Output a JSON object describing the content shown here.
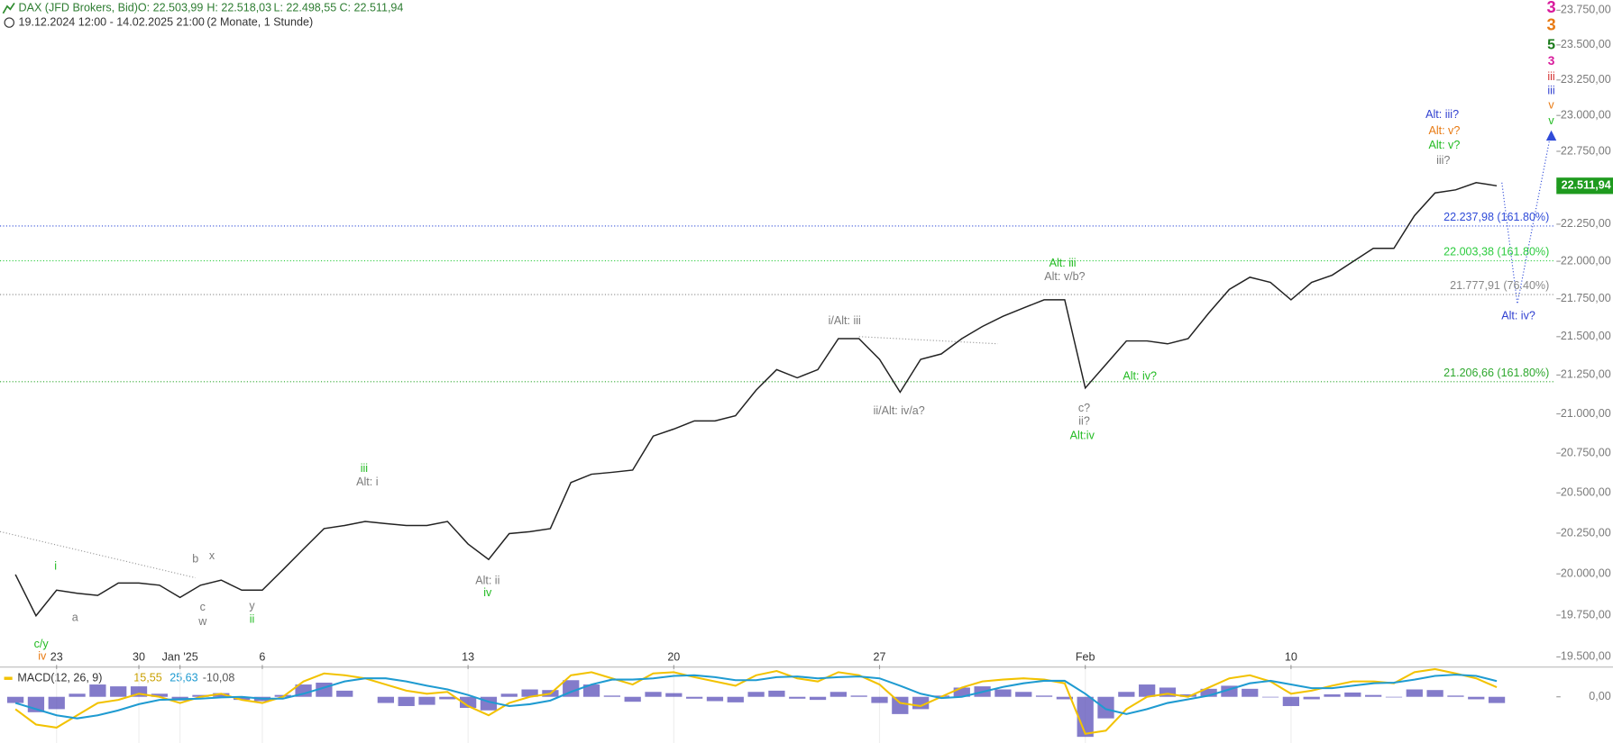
{
  "header": {
    "symbol": "DAX (JFD Brokers, Bid)",
    "open": "O: 22.503,99",
    "high": "H: 22.518,03",
    "low": "L: 22.498,55",
    "close": "C: 22.511,94",
    "range": "19.12.2024 12:00 - 14.02.2025 21:00",
    "period": "(2 Monate, 1 Stunde)"
  },
  "chart_data": [
    {
      "type": "line",
      "log": true,
      "categories": [
        null,
        null,
        "23",
        null,
        null,
        null,
        "30",
        null,
        "Jan '25",
        null,
        null,
        null,
        "6",
        null,
        null,
        null,
        null,
        null,
        null,
        null,
        null,
        null,
        "13",
        null,
        null,
        null,
        null,
        null,
        null,
        null,
        null,
        null,
        "20",
        null,
        null,
        null,
        null,
        null,
        null,
        null,
        null,
        null,
        "27",
        null,
        null,
        null,
        null,
        null,
        null,
        null,
        null,
        null,
        "Feb",
        null,
        null,
        null,
        null,
        null,
        null,
        null,
        null,
        null,
        "10",
        null,
        null,
        null,
        null,
        null,
        null,
        null,
        null,
        null,
        null
      ],
      "series": [
        {
          "color": "#222222",
          "values": [
            19996,
            19746,
            19901,
            19882,
            19869,
            19944,
            19944,
            19931,
            19857,
            19931,
            19962,
            19901,
            19901,
            20025,
            20152,
            20278,
            20297,
            20322,
            20309,
            20297,
            20297,
            20322,
            20183,
            20088,
            20247,
            20259,
            20278,
            20565,
            20617,
            20629,
            20643,
            20858,
            20903,
            20955,
            20955,
            20988,
            21152,
            21285,
            21232,
            21285,
            21487,
            21487,
            21352,
            21139,
            21352,
            21387,
            21487,
            21567,
            21634,
            21689,
            21743,
            21743,
            21166,
            21318,
            21472,
            21472,
            21453,
            21487,
            21655,
            21812,
            21893,
            21859,
            21743,
            21859,
            21907,
            21997,
            22087,
            22087,
            22308,
            22463,
            22484,
            22534,
            22511.94
          ]
        }
      ],
      "ylim": [
        19452,
        23824
      ],
      "yticks": [
        {
          "value": 23750,
          "label": "23.750,00"
        },
        {
          "value": 23500,
          "label": "23.500,00"
        },
        {
          "value": 23250,
          "label": "23.250,00"
        },
        {
          "value": 23000,
          "label": "23.000,00"
        },
        {
          "value": 22750,
          "label": "22.750,00"
        },
        {
          "value": 22500,
          "label": "22.500,00"
        },
        {
          "value": 22250,
          "label": "22.250,00"
        },
        {
          "value": 22000,
          "label": "22.000,00"
        },
        {
          "value": 21750,
          "label": "21.750,00"
        },
        {
          "value": 21500,
          "label": "21.500,00"
        },
        {
          "value": 21250,
          "label": "21.250,00"
        },
        {
          "value": 21000,
          "label": "21.000,00"
        },
        {
          "value": 20750,
          "label": "20.750,00"
        },
        {
          "value": 20500,
          "label": "20.500,00"
        },
        {
          "value": 20250,
          "label": "20.250,00"
        },
        {
          "value": 20000,
          "label": "20.000,00"
        },
        {
          "value": 19750,
          "label": "19.750,00"
        },
        {
          "value": 19500,
          "label": "19.500,00"
        }
      ],
      "levels": [
        {
          "value": 22237.98,
          "label": "22.237,98 (161.80%)",
          "color": "#2f4bd8"
        },
        {
          "value": 22003.38,
          "label": "22.003,38 (161.80%)",
          "color": "#2ecc40"
        },
        {
          "value": 21777.91,
          "label": "21.777,91 (76.40%)",
          "color": "#888888"
        },
        {
          "value": 21206.66,
          "label": "21.206,66 (161.80%)",
          "color": "#2ea82e"
        }
      ],
      "last": {
        "value": 22511.94,
        "label": "22.511,94",
        "color": "#1e9a1e"
      },
      "annotations": [
        "i",
        "c/y",
        "iv",
        "a",
        "b",
        "x",
        "c",
        "w",
        "y",
        "ii",
        "iii",
        "Alt: i",
        "Alt: ii",
        "iv",
        "i/Alt: iii",
        "ii/Alt: iv/a?",
        "Alt: iii",
        "Alt: v/b?",
        "c?",
        "ii?",
        "Alt:iv",
        "Alt: iv?",
        "Alt: iii?",
        "Alt: v?",
        "Alt: v?",
        "iii?",
        "Alt: iv?",
        "3",
        "3",
        "5",
        "3",
        "iii",
        "iii",
        "v",
        "v"
      ]
    },
    {
      "type": "macd",
      "title": "MACD(12, 26, 9)",
      "ylim": [
        -75,
        45
      ],
      "yticks": [
        {
          "value": 0,
          "label": "0,00"
        }
      ],
      "series": [
        {
          "type": "line",
          "color": "#f2c200",
          "last_label": "15,55",
          "values": [
            -20,
            -45,
            -50,
            -30,
            -10,
            -5,
            5,
            0,
            -10,
            0,
            5,
            -5,
            -10,
            0,
            25,
            38,
            35,
            30,
            20,
            10,
            5,
            8,
            -15,
            -30,
            -10,
            0,
            5,
            35,
            40,
            30,
            20,
            38,
            40,
            32,
            25,
            18,
            35,
            42,
            30,
            25,
            40,
            35,
            20,
            -10,
            -15,
            0,
            15,
            25,
            28,
            30,
            28,
            22,
            -60,
            -55,
            -20,
            0,
            5,
            0,
            15,
            30,
            35,
            25,
            5,
            10,
            18,
            25,
            25,
            22,
            40,
            45,
            38,
            30,
            15.55
          ]
        },
        {
          "type": "line",
          "color": "#1f9bd1",
          "last_label": "25,63",
          "values": [
            -10,
            -20,
            -30,
            -35,
            -30,
            -22,
            -12,
            -5,
            -4,
            -3,
            -1,
            0,
            -3,
            -3,
            5,
            15,
            25,
            30,
            30,
            25,
            18,
            12,
            3,
            -8,
            -15,
            -12,
            -6,
            8,
            20,
            28,
            28,
            30,
            34,
            35,
            32,
            27,
            27,
            32,
            33,
            30,
            32,
            33,
            30,
            18,
            5,
            -2,
            0,
            8,
            16,
            22,
            26,
            26,
            5,
            -20,
            -28,
            -20,
            -10,
            -4,
            2,
            12,
            22,
            26,
            20,
            14,
            14,
            18,
            22,
            23,
            28,
            34,
            36,
            34,
            25.63
          ]
        },
        {
          "type": "bar",
          "color": "#5a4fb8",
          "last_label": "-10,08",
          "values": [
            -10,
            -25,
            -20,
            5,
            20,
            17,
            17,
            5,
            -6,
            3,
            6,
            -5,
            -7,
            3,
            20,
            23,
            10,
            0,
            -10,
            -15,
            -13,
            -4,
            -18,
            -22,
            5,
            12,
            11,
            27,
            20,
            2,
            -8,
            8,
            6,
            -3,
            -7,
            -9,
            8,
            10,
            -3,
            -5,
            8,
            2,
            -10,
            -28,
            -20,
            2,
            15,
            17,
            12,
            8,
            2,
            -4,
            -65,
            -35,
            8,
            20,
            15,
            4,
            13,
            18,
            13,
            -1,
            -15,
            -4,
            4,
            7,
            3,
            -1,
            12,
            11,
            2,
            -4,
            -10.08
          ]
        }
      ]
    }
  ]
}
